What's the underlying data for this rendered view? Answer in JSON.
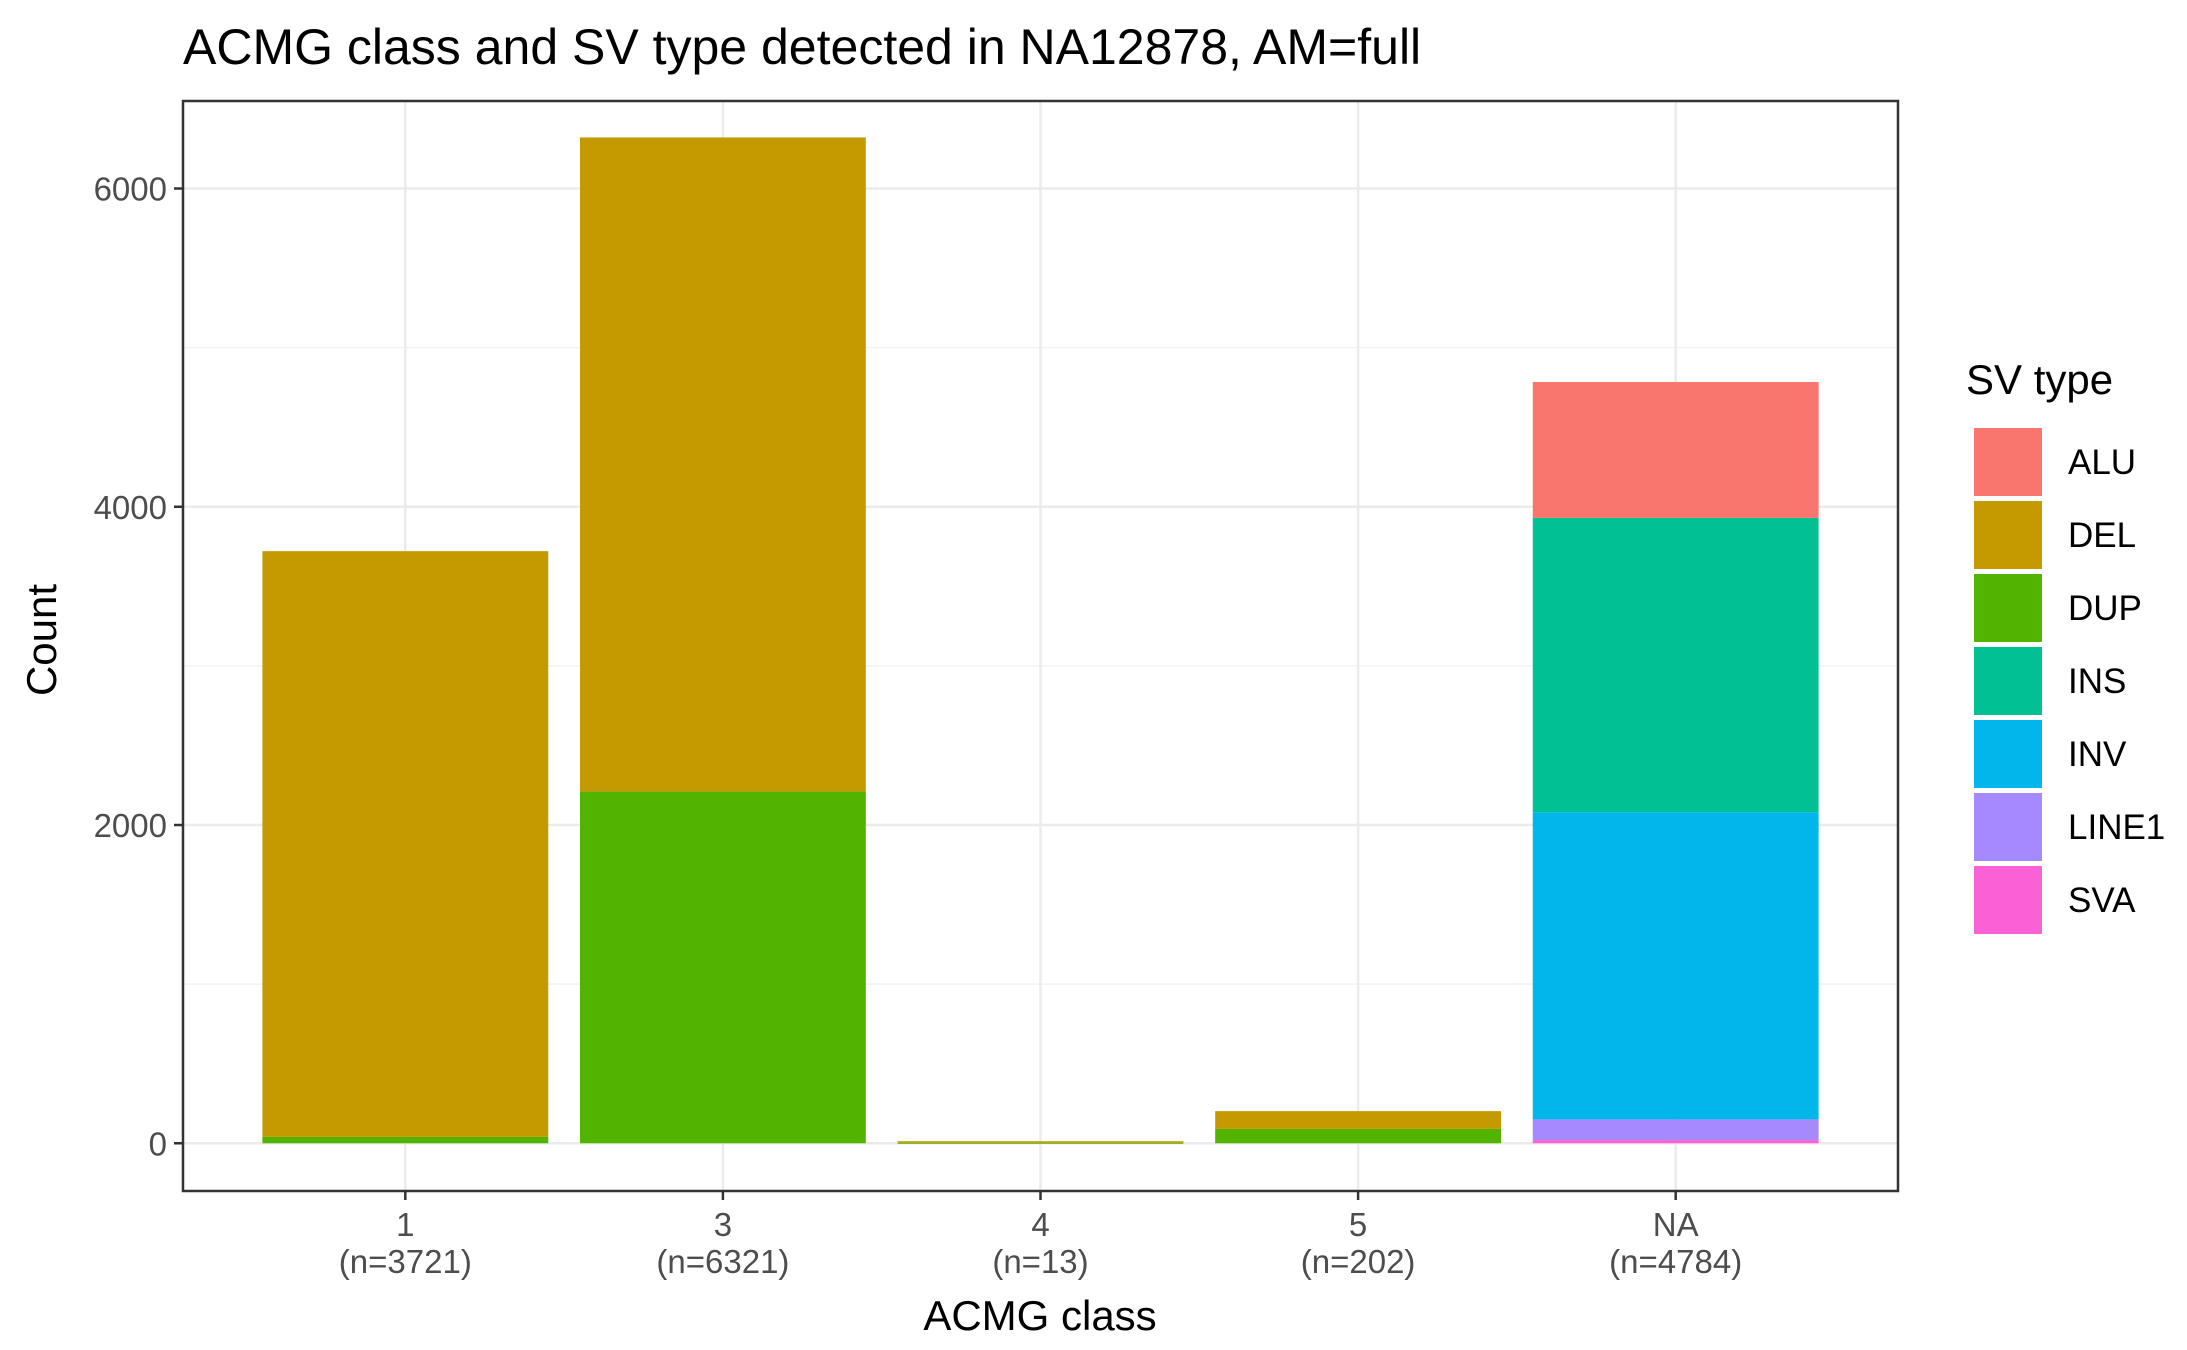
{
  "chart_data": {
    "type": "bar",
    "stacked": true,
    "title": "ACMG class and SV type detected in NA12878, AM=full",
    "xlabel": "ACMG class",
    "ylabel": "Count",
    "ylim": [
      -300,
      6550
    ],
    "yticks": [
      0,
      2000,
      4000,
      6000
    ],
    "grid": true,
    "legend": {
      "title": "SV type",
      "position": "right"
    },
    "categories": [
      "1",
      "3",
      "4",
      "5",
      "NA"
    ],
    "category_counts": [
      "(n=3721)",
      "(n=6321)",
      "(n=13)",
      "(n=202)",
      "(n=4784)"
    ],
    "colors": {
      "ALU": "#F8766D",
      "DEL": "#C49A00",
      "DUP": "#53B400",
      "INS": "#00C094",
      "INV": "#00B6EB",
      "LINE1": "#A58AFF",
      "SVA": "#FB61D7"
    },
    "series": [
      {
        "name": "SVA",
        "values": [
          0,
          0,
          0,
          0,
          20
        ]
      },
      {
        "name": "LINE1",
        "values": [
          0,
          0,
          0,
          0,
          130
        ]
      },
      {
        "name": "INV",
        "values": [
          0,
          0,
          0,
          0,
          1930
        ]
      },
      {
        "name": "INS",
        "values": [
          0,
          0,
          0,
          0,
          1850
        ]
      },
      {
        "name": "DUP",
        "values": [
          40,
          2210,
          3,
          90,
          0
        ]
      },
      {
        "name": "DEL",
        "values": [
          3681,
          4111,
          10,
          112,
          0
        ]
      },
      {
        "name": "ALU",
        "values": [
          0,
          0,
          0,
          0,
          854
        ]
      }
    ],
    "legend_order": [
      "ALU",
      "DEL",
      "DUP",
      "INS",
      "INV",
      "LINE1",
      "SVA"
    ]
  }
}
